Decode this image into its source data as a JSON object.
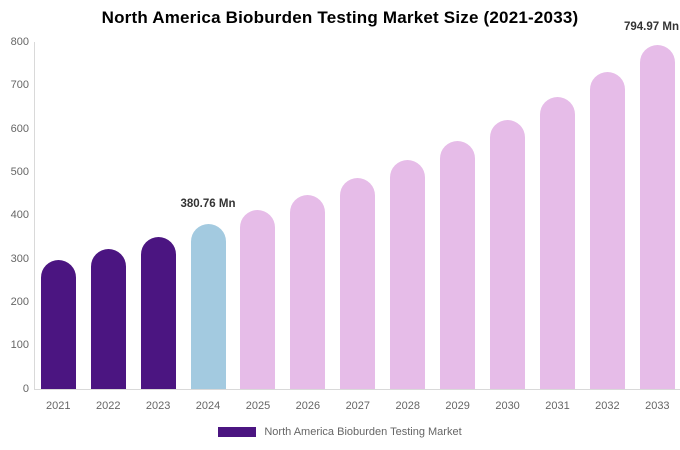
{
  "title": "North America Bioburden Testing Market Size (2021-2033)",
  "annotations": {
    "base_year_label": "380.76 Mn",
    "final_year_label": "794.97 Mn"
  },
  "legend": {
    "label": "North America Bioburden Testing Market"
  },
  "colors": {
    "historical_bar": "#4B1581",
    "base_year_bar": "#A3CAE0",
    "forecast_bar": "#E6BCE8",
    "axis_line": "#D9D9D9",
    "tick_text": "#666666",
    "annotation_text": "#333333",
    "title_text": "#000000"
  },
  "chart_data": {
    "type": "bar",
    "title": "North America Bioburden Testing Market Size (2021-2033)",
    "unit": "Mn",
    "categories": [
      "2021",
      "2022",
      "2023",
      "2024",
      "2025",
      "2026",
      "2027",
      "2028",
      "2029",
      "2030",
      "2031",
      "2032",
      "2033"
    ],
    "values": [
      297.9,
      323.29,
      350.85,
      380.76,
      413.22,
      448.44,
      486.67,
      528.15,
      573.17,
      622.02,
      675.04,
      732.58,
      794.97
    ],
    "bar_colors": [
      "#4B1581",
      "#4B1581",
      "#4B1581",
      "#A3CAE0",
      "#E6BCE8",
      "#E6BCE8",
      "#E6BCE8",
      "#E6BCE8",
      "#E6BCE8",
      "#E6BCE8",
      "#E6BCE8",
      "#E6BCE8",
      "#E6BCE8"
    ],
    "data_labels": [
      {
        "category": "2024",
        "text": "380.76 Mn"
      },
      {
        "category": "2033",
        "text": "794.97 Mn"
      }
    ],
    "xlabel": "",
    "ylabel": "",
    "ylim": [
      0,
      800
    ],
    "yticks": [
      0,
      100,
      200,
      300,
      400,
      500,
      600,
      700,
      800
    ],
    "grid": false,
    "legend": [
      "North America Bioburden Testing Market"
    ],
    "legend_position": "bottom"
  }
}
